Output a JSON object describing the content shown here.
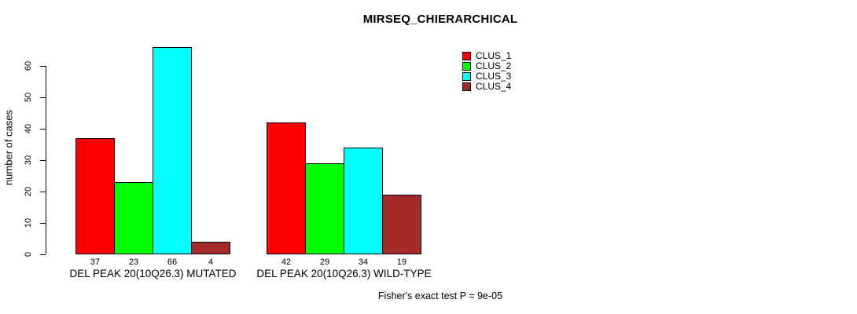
{
  "title": "MIRSEQ_CHIERARCHICAL",
  "y_axis": {
    "label": "number of cases",
    "ticks": [
      0,
      10,
      20,
      30,
      40,
      50,
      60
    ]
  },
  "footnote": "Fisher's exact test P = 9e-05",
  "legend": [
    {
      "label": "CLUS_1",
      "color": "#FF0000"
    },
    {
      "label": "CLUS_2",
      "color": "#00FF00"
    },
    {
      "label": "CLUS_3",
      "color": "#00FFFF"
    },
    {
      "label": "CLUS_4",
      "color": "#A52A2A"
    }
  ],
  "chart_data": {
    "type": "bar",
    "title": "MIRSEQ_CHIERARCHICAL",
    "xlabel": "",
    "ylabel": "number of cases",
    "ylim": [
      0,
      66
    ],
    "yticks": [
      0,
      10,
      20,
      30,
      40,
      50,
      60
    ],
    "grid": false,
    "legend_position": "top-right",
    "categories": [
      "DEL PEAK 20(10Q26.3) MUTATED",
      "DEL PEAK 20(10Q26.3) WILD-TYPE"
    ],
    "series": [
      {
        "name": "CLUS_1",
        "color": "#FF0000",
        "values": [
          37,
          42
        ]
      },
      {
        "name": "CLUS_2",
        "color": "#00FF00",
        "values": [
          23,
          29
        ]
      },
      {
        "name": "CLUS_3",
        "color": "#00FFFF",
        "values": [
          66,
          34
        ]
      },
      {
        "name": "CLUS_4",
        "color": "#A52A2A",
        "values": [
          4,
          19
        ]
      }
    ],
    "bar_value_labels": [
      [
        37,
        23,
        66,
        4
      ],
      [
        42,
        29,
        34,
        19
      ]
    ],
    "annotation": "Fisher's exact test P = 9e-05"
  }
}
